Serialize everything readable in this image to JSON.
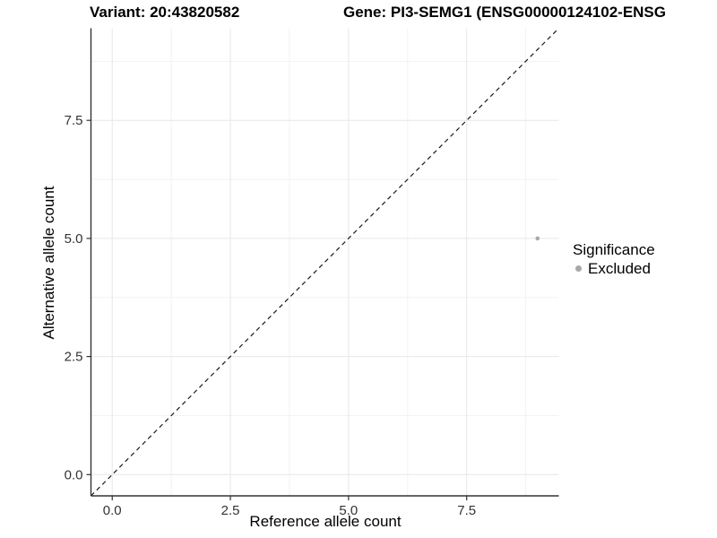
{
  "title": {
    "variant": "Variant: 20:43820582",
    "gene": "Gene: PI3-SEMG1 (ENSG00000124102-ENSG"
  },
  "chart_data": {
    "type": "scatter",
    "title": "Variant: 20:43820582   Gene: PI3-SEMG1 (ENSG00000124102-ENSG",
    "xlabel": "Reference allele count",
    "ylabel": "Alternative allele count",
    "xlim": [
      -0.45,
      9.45
    ],
    "ylim": [
      -0.45,
      9.45
    ],
    "x_ticks": {
      "values": [
        0,
        2.5,
        5,
        7.5
      ],
      "labels": [
        "0.0",
        "2.5",
        "5.0",
        "7.5"
      ]
    },
    "y_ticks": {
      "values": [
        0,
        2.5,
        5,
        7.5
      ],
      "labels": [
        "0.0",
        "2.5",
        "5.0",
        "7.5"
      ]
    },
    "x_minor": [
      1.25,
      3.75,
      6.25,
      8.75
    ],
    "y_minor": [
      1.25,
      3.75,
      6.25,
      8.75
    ],
    "grid": "major+minor",
    "identity_line": {
      "style": "dashed",
      "from": -0.45,
      "to": 9.45,
      "color": "#1a1a1a"
    },
    "points": [
      {
        "x": 9,
        "y": 5,
        "significance": "Excluded",
        "color": "#a8a8a8",
        "radius": 2.3
      }
    ],
    "legend": {
      "title": "Significance",
      "position": "right",
      "entries": [
        {
          "label": "Excluded",
          "color": "#a8a8a8"
        }
      ]
    }
  },
  "colors": {
    "background": "#ffffff",
    "grid_major": "#e7e7e7",
    "grid_minor": "#f2f2f2",
    "axis": "#333333",
    "tick_label": "#333333"
  }
}
